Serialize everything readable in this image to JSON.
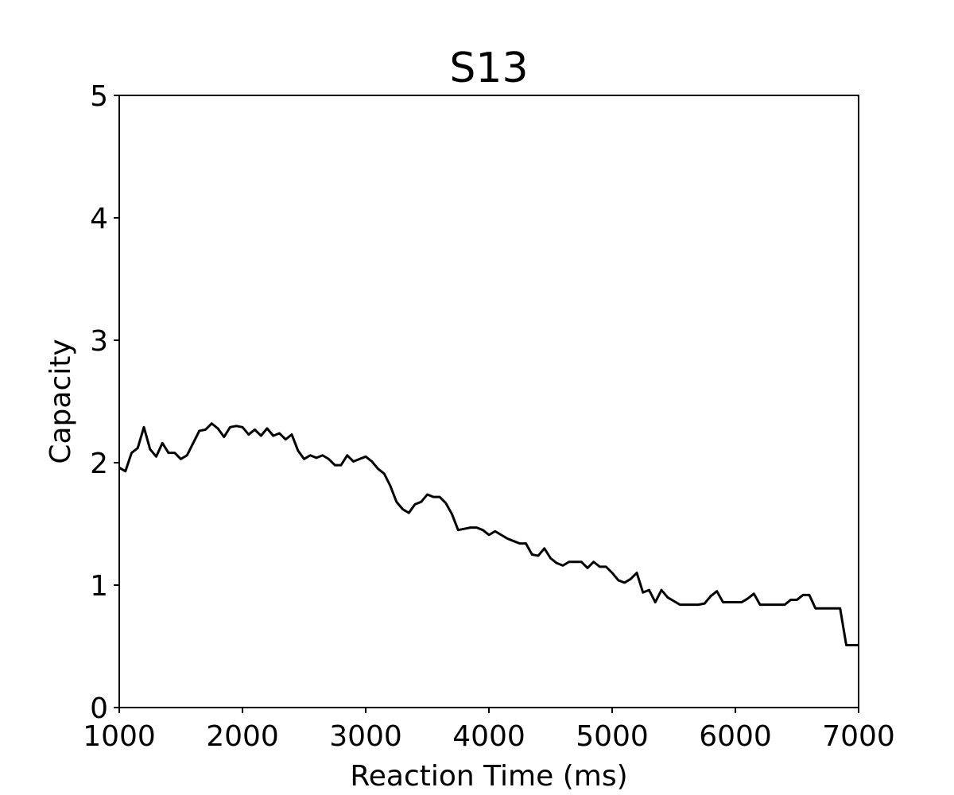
{
  "chart_data": {
    "type": "line",
    "title": "S13",
    "x_label": "Reaction Time (ms)",
    "y_label": "Capacity",
    "x": [
      1000,
      1050,
      1100,
      1150,
      1200,
      1250,
      1300,
      1350,
      1400,
      1450,
      1500,
      1550,
      1600,
      1650,
      1700,
      1750,
      1800,
      1850,
      1900,
      1950,
      2000,
      2050,
      2100,
      2150,
      2200,
      2250,
      2300,
      2350,
      2400,
      2450,
      2500,
      2550,
      2600,
      2650,
      2700,
      2750,
      2800,
      2850,
      2900,
      2950,
      3000,
      3050,
      3100,
      3150,
      3200,
      3250,
      3300,
      3350,
      3400,
      3450,
      3500,
      3550,
      3600,
      3650,
      3700,
      3750,
      3800,
      3850,
      3900,
      3950,
      4000,
      4050,
      4100,
      4150,
      4200,
      4250,
      4300,
      4350,
      4400,
      4450,
      4500,
      4550,
      4600,
      4650,
      4700,
      4750,
      4800,
      4850,
      4900,
      4950,
      5000,
      5050,
      5100,
      5150,
      5200,
      5250,
      5300,
      5350,
      5400,
      5450,
      5500,
      5550,
      5600,
      5650,
      5700,
      5750,
      5800,
      5850,
      5900,
      5950,
      6000,
      6050,
      6100,
      6150,
      6200,
      6250,
      6300,
      6350,
      6400,
      6450,
      6500,
      6550,
      6600,
      6650,
      6700,
      6750,
      6800,
      6850,
      6900,
      6950,
      7000
    ],
    "values": [
      1.96,
      1.93,
      2.08,
      2.12,
      2.29,
      2.11,
      2.05,
      2.16,
      2.08,
      2.08,
      2.03,
      2.06,
      2.16,
      2.26,
      2.27,
      2.32,
      2.28,
      2.21,
      2.29,
      2.3,
      2.29,
      2.23,
      2.27,
      2.22,
      2.28,
      2.22,
      2.24,
      2.19,
      2.23,
      2.1,
      2.03,
      2.06,
      2.04,
      2.06,
      2.03,
      1.98,
      1.98,
      2.06,
      2.01,
      2.03,
      2.05,
      2.01,
      1.95,
      1.91,
      1.81,
      1.68,
      1.62,
      1.59,
      1.66,
      1.68,
      1.74,
      1.72,
      1.72,
      1.67,
      1.58,
      1.45,
      1.46,
      1.47,
      1.47,
      1.45,
      1.41,
      1.44,
      1.41,
      1.38,
      1.36,
      1.34,
      1.34,
      1.25,
      1.24,
      1.3,
      1.22,
      1.18,
      1.16,
      1.19,
      1.19,
      1.19,
      1.14,
      1.19,
      1.15,
      1.15,
      1.1,
      1.04,
      1.02,
      1.05,
      1.1,
      0.94,
      0.96,
      0.86,
      0.96,
      0.9,
      0.87,
      0.84,
      0.84,
      0.84,
      0.84,
      0.85,
      0.91,
      0.95,
      0.86,
      0.86,
      0.86,
      0.86,
      0.89,
      0.93,
      0.84,
      0.84,
      0.84,
      0.84,
      0.84,
      0.88,
      0.88,
      0.92,
      0.92,
      0.81,
      0.81,
      0.81,
      0.81,
      0.81,
      0.51,
      0.51,
      0.51
    ],
    "color": "#000000",
    "xlim": [
      1000,
      7000
    ],
    "xticks": [
      1000,
      2000,
      3000,
      4000,
      5000,
      6000,
      7000
    ],
    "ylim": [
      0,
      5
    ],
    "yticks": [
      0,
      1,
      2,
      3,
      4,
      5
    ]
  }
}
